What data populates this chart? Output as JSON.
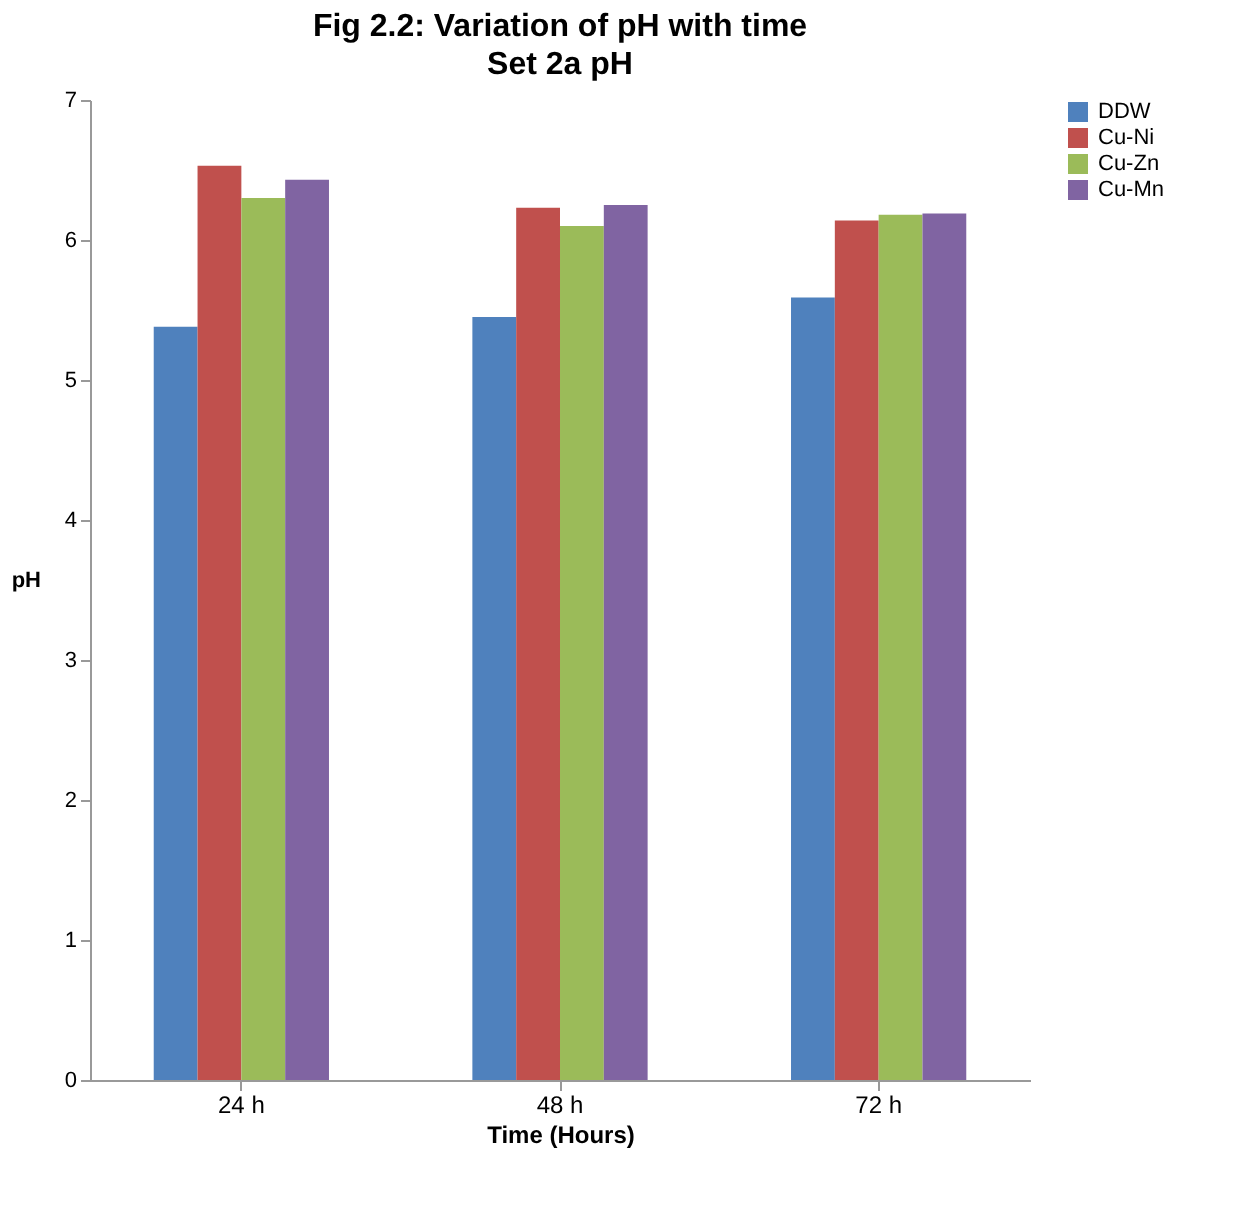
{
  "chart_data": {
    "type": "bar",
    "title": "Fig 2.2: Variation of pH with time",
    "subtitle": "Set 2a pH",
    "xlabel": "Time (Hours)",
    "ylabel": "pH",
    "categories": [
      "24 h",
      "48 h",
      "72 h"
    ],
    "series": [
      {
        "name": "DDW",
        "color": "#4f81bd",
        "values": [
          5.38,
          5.45,
          5.59
        ]
      },
      {
        "name": "Cu-Ni",
        "color": "#c0504d",
        "values": [
          6.53,
          6.23,
          6.14
        ]
      },
      {
        "name": "Cu-Zn",
        "color": "#9bbb59",
        "values": [
          6.3,
          6.1,
          6.18
        ]
      },
      {
        "name": "Cu-Mn",
        "color": "#8064a2",
        "values": [
          6.43,
          6.25,
          6.19
        ]
      }
    ],
    "ylim": [
      0,
      7
    ],
    "yticks": [
      0,
      1,
      2,
      3,
      4,
      5,
      6,
      7
    ],
    "grid": false,
    "legend": "right"
  }
}
